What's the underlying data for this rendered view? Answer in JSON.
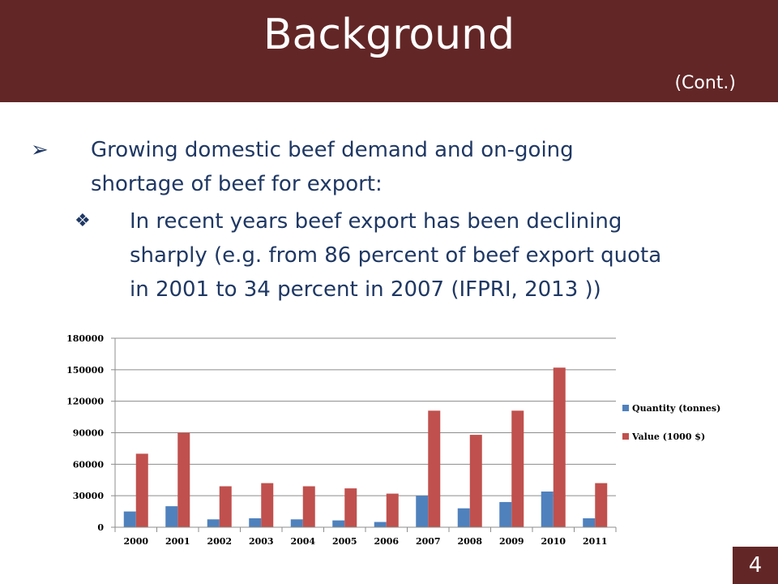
{
  "header": {
    "title": "Background",
    "subtitle": "(Cont.)"
  },
  "bullets": {
    "main_marker": "➢",
    "main_lines": [
      "Growing domestic beef demand and on-going",
      "shortage of beef for export:"
    ],
    "sub_marker": "❖",
    "sub_lines": [
      "In recent years beef export has been declining",
      "sharply (e.g. from 86 percent of beef export quota",
      "in 2001 to 34 percent in 2007 (IFPRI, 2013 ))"
    ]
  },
  "page_number": "4",
  "colors": {
    "header": "#632626",
    "text": "#1f3864",
    "quantity": "#4f81bd",
    "value": "#c0504d"
  },
  "chart_data": {
    "type": "bar",
    "title": "",
    "xlabel": "",
    "ylabel": "",
    "categories": [
      "2000",
      "2001",
      "2002",
      "2003",
      "2004",
      "2005",
      "2006",
      "2007",
      "2008",
      "2009",
      "2010",
      "2011"
    ],
    "series": [
      {
        "name": "Quantity (tonnes)",
        "values": [
          15000,
          20000,
          7500,
          8500,
          7500,
          6500,
          5000,
          30000,
          18000,
          24000,
          34000,
          8500
        ]
      },
      {
        "name": "Value (1000 $)",
        "values": [
          70000,
          90000,
          39000,
          42000,
          39000,
          37000,
          32000,
          111000,
          88000,
          111000,
          152000,
          42000
        ]
      }
    ],
    "yticks": [
      "0",
      "30000",
      "60000",
      "90000",
      "120000",
      "150000",
      "180000"
    ],
    "ylim": [
      0,
      180000
    ],
    "grid": true,
    "legend_position": "right"
  }
}
